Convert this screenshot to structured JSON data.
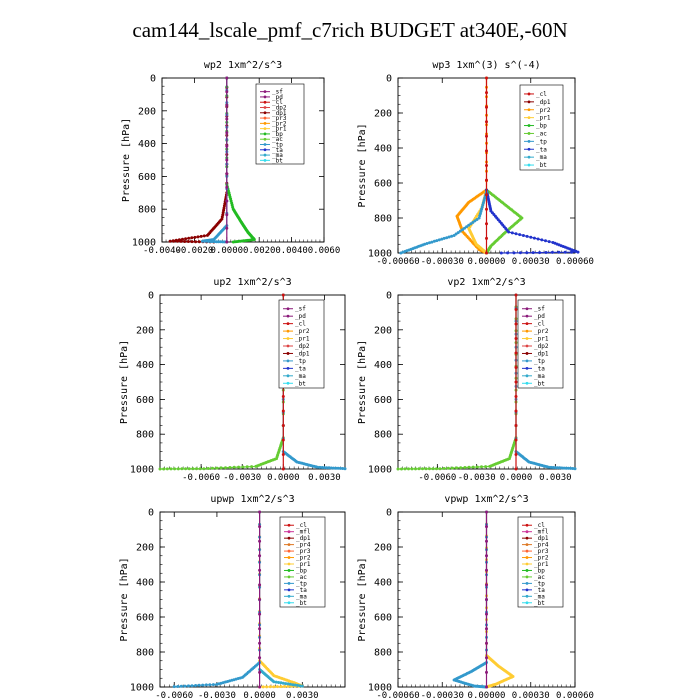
{
  "title": "cam144_lscale_pmf_c7rich  BUDGET at340E,-60N",
  "colors": {
    "sf": "#8B1A7A",
    "pd": "#8B1A7A",
    "cl": "#CC1111",
    "dp1": "#8B0000",
    "dp2": "#DD4444",
    "pr1": "#FFCC33",
    "pr2": "#FF9900",
    "pr3": "#FF6633",
    "pr4": "#DD7722",
    "bp": "#22BB22",
    "ac": "#66CC33",
    "tp": "#3399CC",
    "ta": "#2233CC",
    "ma": "#33AACC",
    "bt": "#33DDEE",
    "mfl": "#CC3399"
  },
  "chart_data": [
    {
      "type": "line",
      "title": "wp2  1xm^2/s^3",
      "ylabel": "Pressure [hPa]",
      "ylim": [
        1000,
        0
      ],
      "y_ticks": [
        "0",
        "200",
        "400",
        "600",
        "800",
        "1000"
      ],
      "xlim": [
        -0.004,
        0.006
      ],
      "x_ticks": [
        "-0.0040",
        "-0.0020",
        "0.0000",
        "0.0020",
        "0.0040",
        "0.0060"
      ],
      "legend": [
        "_sf",
        "_pd",
        "_cl",
        "_dp2",
        "_dp1",
        "_pr3",
        "_pr2",
        "_pr1",
        "_bp",
        "_ac",
        "_tp",
        "_ta",
        "_ma",
        "_bt"
      ],
      "series": [
        {
          "name": "_dp1",
          "color": "dp1",
          "points": [
            [
              0,
              0
            ],
            [
              0,
              700
            ],
            [
              -0.0003,
              860
            ],
            [
              -0.0012,
              960
            ],
            [
              -0.0035,
              995
            ],
            [
              -0.0008,
              1000
            ]
          ]
        },
        {
          "name": "_bp",
          "color": "bp",
          "points": [
            [
              0,
              0
            ],
            [
              0,
              650
            ],
            [
              0.0004,
              800
            ],
            [
              0.0009,
              880
            ],
            [
              0.0013,
              940
            ],
            [
              0.0017,
              985
            ],
            [
              0.0004,
              1000
            ]
          ]
        },
        {
          "name": "_tp",
          "color": "tp",
          "points": [
            [
              0,
              0
            ],
            [
              0,
              900
            ],
            [
              -0.0008,
              985
            ],
            [
              -0.0015,
              995
            ],
            [
              0,
              1000
            ]
          ]
        },
        {
          "name": "_pd",
          "color": "pd",
          "points": [
            [
              0,
              0
            ],
            [
              0,
              1000
            ]
          ]
        }
      ]
    },
    {
      "type": "line",
      "title": "wp3  1xm^(3) s^(-4)",
      "ylabel": "Pressure [hPa]",
      "ylim": [
        1000,
        0
      ],
      "y_ticks": [
        "0",
        "200",
        "400",
        "600",
        "800",
        "1000"
      ],
      "xlim": [
        -0.0006,
        0.0006
      ],
      "x_ticks": [
        "-0.00060",
        "-0.00030",
        "0.00000",
        "0.00030",
        "0.00060"
      ],
      "legend": [
        "_cl",
        "_dp1",
        "_pr2",
        "_pr1",
        "_bp",
        "_ac",
        "_tp",
        "_ta",
        "_ma",
        "_bt"
      ],
      "series": [
        {
          "name": "_pr2",
          "color": "pr2",
          "points": [
            [
              0,
              0
            ],
            [
              0,
              640
            ],
            [
              -0.00012,
              710
            ],
            [
              -0.0002,
              790
            ],
            [
              -0.00016,
              880
            ],
            [
              -5e-05,
              980
            ],
            [
              0,
              1000
            ]
          ]
        },
        {
          "name": "_pr1",
          "color": "pr1",
          "points": [
            [
              0,
              640
            ],
            [
              -3e-05,
              740
            ],
            [
              -0.00012,
              860
            ],
            [
              -7e-05,
              950
            ],
            [
              0,
              1000
            ]
          ]
        },
        {
          "name": "_ac",
          "color": "ac",
          "points": [
            [
              0,
              640
            ],
            [
              0.00012,
              720
            ],
            [
              0.00024,
              800
            ],
            [
              0.00013,
              880
            ],
            [
              3e-05,
              960
            ],
            [
              0,
              1000
            ]
          ]
        },
        {
          "name": "_ta",
          "color": "ta",
          "points": [
            [
              0,
              640
            ],
            [
              3e-05,
              760
            ],
            [
              0.00015,
              880
            ],
            [
              0.00045,
              940
            ],
            [
              0.00062,
              995
            ],
            [
              0.0001,
              1000
            ]
          ]
        },
        {
          "name": "_tp",
          "color": "tp",
          "points": [
            [
              0,
              650
            ],
            [
              -5e-05,
              800
            ],
            [
              -0.00022,
              900
            ],
            [
              -0.00042,
              950
            ],
            [
              -0.00058,
              1000
            ]
          ]
        },
        {
          "name": "_cl",
          "color": "cl",
          "points": [
            [
              0,
              0
            ],
            [
              0,
              1000
            ]
          ]
        }
      ]
    },
    {
      "type": "line",
      "title": "up2  1xm^2/s^3",
      "ylabel": "Pressure [hPa]",
      "ylim": [
        1000,
        0
      ],
      "y_ticks": [
        "0",
        "200",
        "400",
        "600",
        "800",
        "1000"
      ],
      "xlim": [
        -0.009,
        0.0045
      ],
      "x_ticks": [
        "-0.0060",
        "-0.0030",
        "0.0000",
        "0.0030"
      ],
      "legend": [
        "_sf",
        "_pd",
        "_cl",
        "_pr2",
        "_pr1",
        "_dp2",
        "_dp1",
        "_tp",
        "_ta",
        "_ma",
        "_bt"
      ],
      "series": [
        {
          "name": "_dp1",
          "color": "ac",
          "points": [
            [
              0,
              0
            ],
            [
              0,
              820
            ],
            [
              -0.0005,
              940
            ],
            [
              -0.002,
              985
            ],
            [
              -0.0058,
              998
            ],
            [
              -0.009,
              1000
            ]
          ]
        },
        {
          "name": "_tp",
          "color": "tp",
          "points": [
            [
              0,
              0
            ],
            [
              0,
              900
            ],
            [
              0.001,
              960
            ],
            [
              0.0025,
              990
            ],
            [
              0.0045,
              998
            ]
          ]
        },
        {
          "name": "_cl",
          "color": "cl",
          "points": [
            [
              0,
              0
            ],
            [
              0,
              1000
            ]
          ]
        }
      ]
    },
    {
      "type": "line",
      "title": "vp2  1xm^2/s^3",
      "ylabel": "Pressure [hPa]",
      "ylim": [
        1000,
        0
      ],
      "y_ticks": [
        "0",
        "200",
        "400",
        "600",
        "800",
        "1000"
      ],
      "xlim": [
        -0.009,
        0.0045
      ],
      "x_ticks": [
        "-0.0060",
        "-0.0030",
        "0.0000",
        "0.0030"
      ],
      "legend": [
        "_sf",
        "_pd",
        "_cl",
        "_pr2",
        "_pr1",
        "_dp2",
        "_dp1",
        "_tp",
        "_ta",
        "_ma",
        "_bt"
      ],
      "series": [
        {
          "name": "_dp1",
          "color": "ac",
          "points": [
            [
              0,
              0
            ],
            [
              0,
              820
            ],
            [
              -0.0005,
              940
            ],
            [
              -0.002,
              985
            ],
            [
              -0.0058,
              998
            ],
            [
              -0.009,
              1000
            ]
          ]
        },
        {
          "name": "_tp",
          "color": "tp",
          "points": [
            [
              0,
              0
            ],
            [
              0,
              900
            ],
            [
              0.001,
              960
            ],
            [
              0.0025,
              990
            ],
            [
              0.0045,
              998
            ]
          ]
        },
        {
          "name": "_cl",
          "color": "cl",
          "points": [
            [
              0,
              0
            ],
            [
              0,
              1000
            ]
          ]
        }
      ]
    },
    {
      "type": "line",
      "title": "upwp  1xm^2/s^3",
      "ylabel": "Pressure [hPa]",
      "ylim": [
        1000,
        0
      ],
      "y_ticks": [
        "0",
        "200",
        "400",
        "600",
        "800",
        "1000"
      ],
      "xlim": [
        -0.007,
        0.006
      ],
      "x_ticks": [
        "-0.0060",
        "-0.0030",
        "0.0000",
        "0.0030"
      ],
      "legend": [
        "_cl",
        "_mfl",
        "_dp1",
        "_pr4",
        "_pr3",
        "_pr2",
        "_pr1",
        "_bp",
        "_ac",
        "_tp",
        "_ta",
        "_ma",
        "_bt"
      ],
      "series": [
        {
          "name": "_pr1",
          "color": "pr1",
          "points": [
            [
              0,
              0
            ],
            [
              0,
              850
            ],
            [
              0.001,
              935
            ],
            [
              0.0024,
              975
            ],
            [
              0.003,
              995
            ],
            [
              0,
              1000
            ]
          ]
        },
        {
          "name": "_tp",
          "color": "tp",
          "points": [
            [
              0,
              0
            ],
            [
              0,
              860
            ],
            [
              -0.0012,
              945
            ],
            [
              -0.003,
              985
            ],
            [
              -0.006,
              998
            ]
          ]
        },
        {
          "name": "_ma",
          "color": "ma",
          "points": [
            [
              0,
              900
            ],
            [
              0.001,
              970
            ],
            [
              0.003,
              995
            ]
          ]
        },
        {
          "name": "_cl",
          "color": "pd",
          "points": [
            [
              0,
              0
            ],
            [
              0,
              1000
            ]
          ]
        }
      ]
    },
    {
      "type": "line",
      "title": "vpwp  1xm^2/s^3",
      "ylabel": "Pressure [hPa]",
      "ylim": [
        1000,
        0
      ],
      "y_ticks": [
        "0",
        "200",
        "400",
        "600",
        "800",
        "1000"
      ],
      "xlim": [
        -0.0006,
        0.0006
      ],
      "x_ticks": [
        "-0.00060",
        "-0.00030",
        "0.00000",
        "0.00030",
        "0.00060"
      ],
      "legend": [
        "_cl",
        "_mfl",
        "_dp1",
        "_pr4",
        "_pr3",
        "_pr2",
        "_pr1",
        "_bp",
        "_ac",
        "_tp",
        "_ta",
        "_ma",
        "_bt"
      ],
      "series": [
        {
          "name": "_pr1",
          "color": "pr1",
          "points": [
            [
              0,
              0
            ],
            [
              0,
              820
            ],
            [
              8e-05,
              880
            ],
            [
              0.00018,
              940
            ],
            [
              6e-05,
              985
            ],
            [
              0,
              1000
            ]
          ]
        },
        {
          "name": "_tp",
          "color": "tp",
          "points": [
            [
              0,
              0
            ],
            [
              0,
              860
            ],
            [
              -0.0001,
              910
            ],
            [
              -0.00022,
              960
            ],
            [
              -8e-05,
              995
            ],
            [
              0,
              1000
            ]
          ]
        },
        {
          "name": "_cl",
          "color": "pd",
          "points": [
            [
              0,
              0
            ],
            [
              0,
              1000
            ]
          ]
        }
      ]
    }
  ]
}
